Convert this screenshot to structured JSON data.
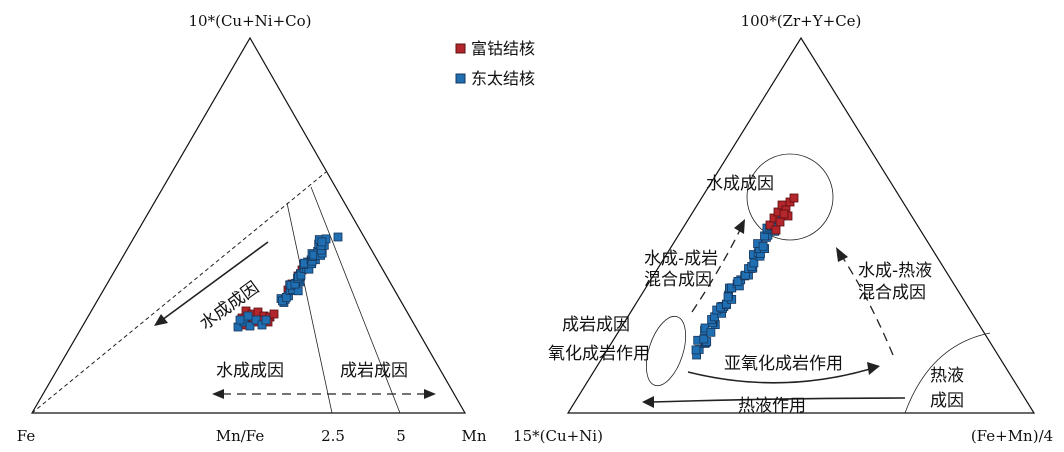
{
  "colors": {
    "cobalt_rich": "#b3262b",
    "dongtai": "#1f6fb2",
    "marker_edge": "#17375e"
  },
  "legend": {
    "cobalt_rich_label": "富钴结核",
    "dongtai_label": "东太结核"
  },
  "left_diagram": {
    "apex_top_label": "10*(Cu+Ni+Co)",
    "apex_left_label": "Fe",
    "apex_right_label": "Mn",
    "ratio_label": "Mn/Fe",
    "tick_2_5_label": "2.5",
    "tick_5_label": "5",
    "hydrogenetic_arrow_label": "水成成因",
    "bottom_hydrogenetic_label": "水成成因",
    "bottom_diagenetic_label": "成岩成因"
  },
  "right_diagram": {
    "apex_top_label": "100*(Zr+Y+Ce)",
    "apex_left_label": "15*(Cu+Ni)",
    "apex_right_label": "(Fe+Mn)/4",
    "hydrogenetic_label": "水成成因",
    "mixed_hydro_diagenetic_line1": "水成-成岩",
    "mixed_hydro_diagenetic_line2": "混合成因",
    "mixed_hydro_hydrothermal_line1": "水成-热液",
    "mixed_hydro_hydrothermal_line2": "混合成因",
    "diagenetic_line1": "成岩成因",
    "diagenetic_line2": "氧化成岩作用",
    "suboxic_label": "亚氧化成岩作用",
    "hydrothermal_process_label": "热液作用",
    "hydrothermal_line1": "热液",
    "hydrothermal_line2": "成因"
  },
  "series": [
    {
      "name": "富钴结核",
      "color_key": "cobalt_rich"
    },
    {
      "name": "东太结核",
      "color_key": "dongtai"
    }
  ]
}
